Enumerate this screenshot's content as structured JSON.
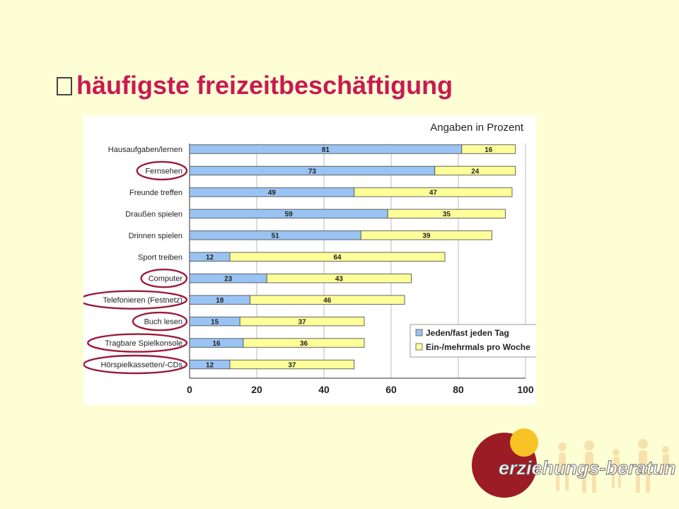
{
  "page": {
    "title": "häufigste freizeitbeschäftigung"
  },
  "chart_data": {
    "type": "bar",
    "orientation": "horizontal",
    "stacked": true,
    "note": "Angaben in Prozent",
    "categories": [
      "Hausaufgaben/lernen",
      "Fernsehen",
      "Freunde treffen",
      "Draußen spielen",
      "Drinnen spielen",
      "Sport treiben",
      "Computer",
      "Telefonieren (Festnetz)",
      "Buch lesen",
      "Tragbare Spielkonsole",
      "Hörspielkassetten/-CDs"
    ],
    "series": [
      {
        "name": "Jeden/fast jeden Tag",
        "color": "#99c3f2",
        "values": [
          81,
          73,
          49,
          59,
          51,
          12,
          23,
          18,
          15,
          16,
          12
        ]
      },
      {
        "name": "Ein-/mehrmals pro Woche",
        "color": "#ffff99",
        "values": [
          16,
          24,
          47,
          35,
          39,
          64,
          43,
          46,
          37,
          36,
          37
        ]
      }
    ],
    "xlim": [
      0,
      100
    ],
    "xticks": [
      0,
      20,
      40,
      60,
      80,
      100
    ],
    "highlighted_categories": [
      "Fernsehen",
      "Computer",
      "Telefonieren (Festnetz)",
      "Buch lesen",
      "Tragbare Spielkonsole",
      "Hörspielkassetten/-CDs"
    ],
    "highlight_color": "#9b1c3c",
    "legend_position": "bottom-right",
    "grid": true
  },
  "logo": {
    "text": "erziehungs-beratung.ch",
    "primary_color": "#9b1c25",
    "accent_color": "#f7c325"
  }
}
